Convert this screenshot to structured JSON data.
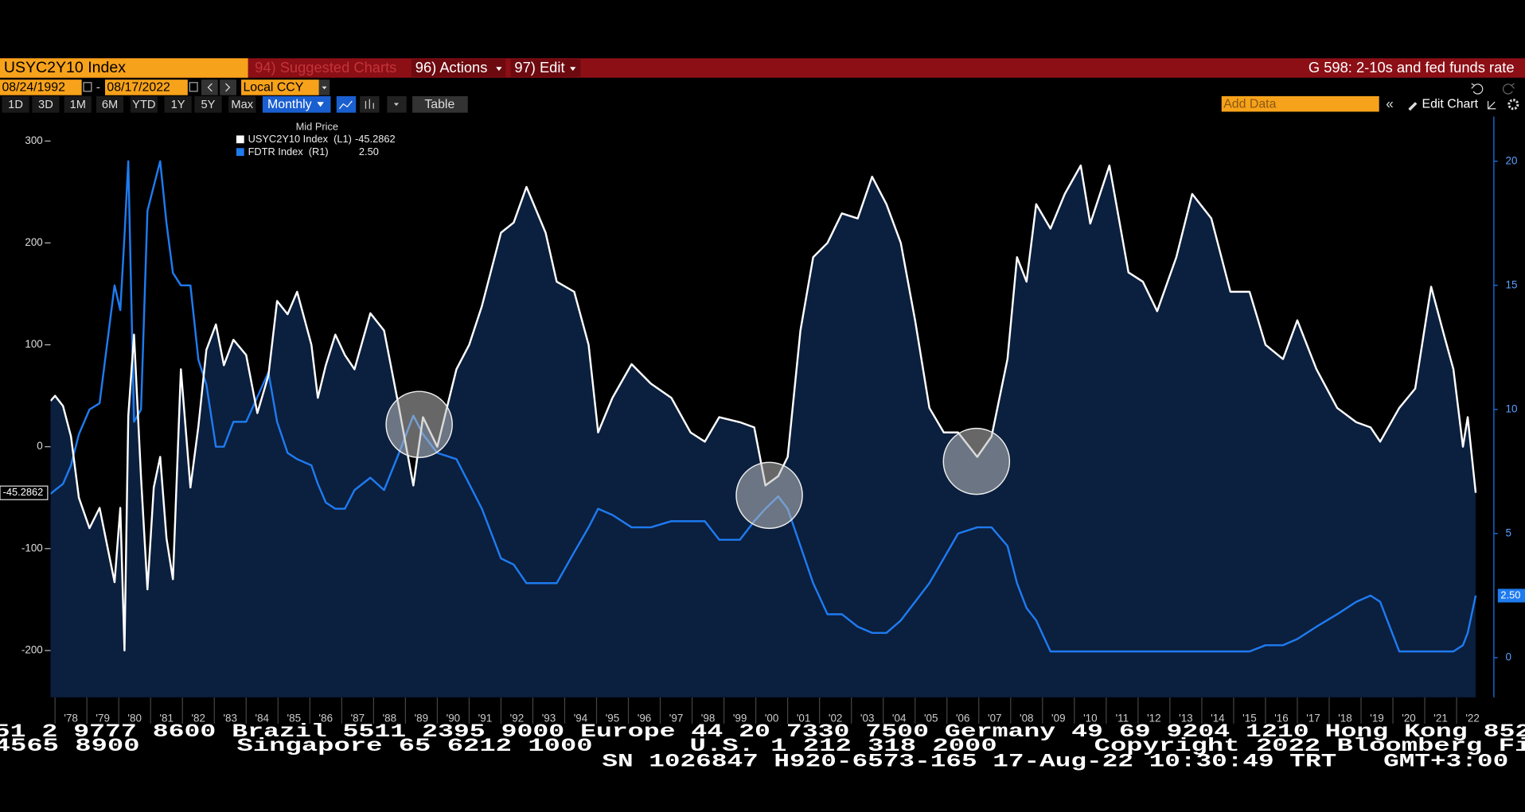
{
  "header": {
    "security": "USYC2Y10 Index",
    "suggested": "94) Suggested Charts",
    "actions": "96) Actions",
    "edit": "97) Edit",
    "chart_title": "G 598: 2-10s and fed funds rate"
  },
  "toolbar": {
    "start_date": "08/24/1992",
    "separator": "-",
    "end_date": "08/17/2022",
    "currency": "Local CCY",
    "periods": [
      "1D",
      "3D",
      "1M",
      "6M",
      "YTD",
      "1Y",
      "5Y",
      "Max"
    ],
    "frequency": "Monthly",
    "table": "Table",
    "add_data": "Add Data",
    "edit_chart": "Edit Chart"
  },
  "chart_data": {
    "type": "line",
    "legend_title": "Mid Price",
    "x": [
      1977.86,
      1978.0,
      1978.25,
      1978.5,
      1978.75,
      1979.08,
      1979.4,
      1979.87,
      1980.05,
      1980.18,
      1980.3,
      1980.48,
      1980.7,
      1980.9,
      1981.1,
      1981.3,
      1981.5,
      1981.7,
      1981.95,
      1982.25,
      1982.5,
      1982.75,
      1983.05,
      1983.3,
      1983.6,
      1984.0,
      1984.35,
      1984.7,
      1984.97,
      1985.3,
      1985.6,
      1986.05,
      1986.25,
      1986.5,
      1986.8,
      1987.1,
      1987.4,
      1987.9,
      1988.33,
      1988.8,
      1989.25,
      1989.55,
      1990.0,
      1990.6,
      1991.0,
      1991.4,
      1992.0,
      1992.4,
      1992.8,
      1993.4,
      1993.75,
      1994.3,
      1994.75,
      1995.05,
      1995.5,
      1996.1,
      1996.7,
      1997.35,
      1997.95,
      1998.4,
      1998.85,
      1999.5,
      1999.95,
      2000.3,
      2000.7,
      2001.0,
      2001.4,
      2001.8,
      2002.25,
      2002.7,
      2003.2,
      2003.65,
      2004.1,
      2004.55,
      2005.0,
      2005.45,
      2005.9,
      2006.35,
      2006.95,
      2007.4,
      2007.9,
      2008.2,
      2008.5,
      2008.8,
      2009.25,
      2009.7,
      2010.2,
      2010.5,
      2011.1,
      2011.7,
      2012.15,
      2012.6,
      2013.2,
      2013.7,
      2014.3,
      2014.9,
      2015.5,
      2016.0,
      2016.55,
      2017.0,
      2017.6,
      2018.25,
      2018.85,
      2019.3,
      2019.6,
      2020.2,
      2020.7,
      2021.2,
      2021.6,
      2021.9,
      2022.2,
      2022.35,
      2022.6
    ],
    "series": [
      {
        "name": "USYC2Y10 Index  (L1)",
        "color": "#ffffff",
        "fill_color": "#0b1f3e",
        "values": [
          45,
          50,
          40,
          10,
          -50,
          -80,
          -60,
          -133,
          -60,
          -200,
          30,
          110,
          -30,
          -140,
          -40,
          -10,
          -90,
          -130,
          76,
          -40,
          20,
          95,
          120,
          80,
          105,
          90,
          33,
          70,
          143,
          130,
          152,
          100,
          48,
          80,
          110,
          90,
          76,
          131,
          114,
          38,
          -38,
          29,
          0,
          76,
          100,
          138,
          210,
          220,
          255,
          210,
          162,
          152,
          100,
          14,
          48,
          81,
          62,
          48,
          14,
          5,
          29,
          24,
          19,
          -38,
          -29,
          -10,
          114,
          186,
          200,
          229,
          224,
          265,
          238,
          200,
          124,
          38,
          14,
          14,
          -10,
          10,
          86,
          186,
          162,
          238,
          214,
          248,
          276,
          219,
          276,
          171,
          162,
          133,
          186,
          248,
          224,
          152,
          152,
          100,
          86,
          124,
          76,
          38,
          24,
          19,
          5,
          38,
          57,
          157,
          110,
          76,
          0,
          29,
          -45.2862
        ]
      },
      {
        "name": "FDTR Index  (R1)",
        "color": "#1e7bf0",
        "axis": "y2",
        "last_value_label": "2.50",
        "values": [
          6.6,
          6.75,
          7,
          7.75,
          9,
          10,
          10.25,
          15,
          14,
          17,
          20,
          9.5,
          10,
          18,
          19,
          20,
          17.5,
          15.5,
          15,
          15,
          12,
          11,
          8.5,
          8.5,
          9.5,
          9.5,
          10.5,
          11.5,
          9.5,
          8.25,
          8,
          7.75,
          7,
          6.25,
          6,
          6,
          6.75,
          7.25,
          6.75,
          8.25,
          9.75,
          9,
          8.25,
          8,
          7,
          6,
          4,
          3.75,
          3,
          3,
          3,
          4.25,
          5.25,
          6,
          5.75,
          5.25,
          5.25,
          5.5,
          5.5,
          5.5,
          4.75,
          4.75,
          5.5,
          6,
          6.5,
          6,
          4.5,
          3,
          1.75,
          1.75,
          1.25,
          1,
          1,
          1.5,
          2.25,
          3,
          4,
          5,
          5.25,
          5.25,
          4.5,
          3,
          2,
          1.5,
          0.25,
          0.25,
          0.25,
          0.25,
          0.25,
          0.25,
          0.25,
          0.25,
          0.25,
          0.25,
          0.25,
          0.25,
          0.25,
          0.5,
          0.5,
          0.75,
          1.25,
          1.75,
          2.25,
          2.5,
          2.25,
          0.25,
          0.25,
          0.25,
          0.25,
          0.25,
          0.5,
          1,
          2.5
        ]
      }
    ],
    "xlim": [
      1977.86,
      2023.17
    ],
    "xticks": [
      {
        "value": 1978,
        "label": "'78"
      },
      {
        "value": 1979,
        "label": "'79"
      },
      {
        "value": 1980,
        "label": "'80"
      },
      {
        "value": 1981,
        "label": "'81"
      },
      {
        "value": 1982,
        "label": "'82"
      },
      {
        "value": 1983,
        "label": "'83"
      },
      {
        "value": 1984,
        "label": "'84"
      },
      {
        "value": 1985,
        "label": "'85"
      },
      {
        "value": 1986,
        "label": "'86"
      },
      {
        "value": 1987,
        "label": "'87"
      },
      {
        "value": 1988,
        "label": "'88"
      },
      {
        "value": 1989,
        "label": "'89"
      },
      {
        "value": 1990,
        "label": "'90"
      },
      {
        "value": 1991,
        "label": "'91"
      },
      {
        "value": 1992,
        "label": "'92"
      },
      {
        "value": 1993,
        "label": "'93"
      },
      {
        "value": 1994,
        "label": "'94"
      },
      {
        "value": 1995,
        "label": "'95"
      },
      {
        "value": 1996,
        "label": "'96"
      },
      {
        "value": 1997,
        "label": "'97"
      },
      {
        "value": 1998,
        "label": "'98"
      },
      {
        "value": 1999,
        "label": "'99"
      },
      {
        "value": 2000,
        "label": "'00"
      },
      {
        "value": 2001,
        "label": "'01"
      },
      {
        "value": 2002,
        "label": "'02"
      },
      {
        "value": 2003,
        "label": "'03"
      },
      {
        "value": 2004,
        "label": "'04"
      },
      {
        "value": 2005,
        "label": "'05"
      },
      {
        "value": 2006,
        "label": "'06"
      },
      {
        "value": 2007,
        "label": "'07"
      },
      {
        "value": 2008,
        "label": "'08"
      },
      {
        "value": 2009,
        "label": "'09"
      },
      {
        "value": 2010,
        "label": "'10"
      },
      {
        "value": 2011,
        "label": "'11"
      },
      {
        "value": 2012,
        "label": "'12"
      },
      {
        "value": 2013,
        "label": "'13"
      },
      {
        "value": 2014,
        "label": "'14"
      },
      {
        "value": 2015,
        "label": "'15"
      },
      {
        "value": 2016,
        "label": "'16"
      },
      {
        "value": 2017,
        "label": "'17"
      },
      {
        "value": 2018,
        "label": "'18"
      },
      {
        "value": 2019,
        "label": "'19"
      },
      {
        "value": 2020,
        "label": "'20"
      },
      {
        "value": 2021,
        "label": "'21"
      },
      {
        "value": 2022,
        "label": "'22"
      }
    ],
    "ylim": [
      -246,
      324
    ],
    "yticks": [
      -200,
      -100,
      0,
      100,
      200,
      300
    ],
    "y2lim": [
      -1.6,
      21.8
    ],
    "y2ticks": [
      0,
      5,
      10,
      15,
      20
    ]
  },
  "footer": {
    "lines": [
      "51 2 9777 8600 Brazil 5511 2395 9000 Europe 44 20 7330 7500 Germany 49 69 9204 1210 Hong Kong 852",
      "4565 8900      Singapore 65 6212 1000      U.S. 1 212 318 2000      Copyright 2022 Bloomberg Fi",
      "SN 1026847 H920-6573-165 17-Aug-22 10:30:49 TRT   GMT+3:00"
    ]
  }
}
